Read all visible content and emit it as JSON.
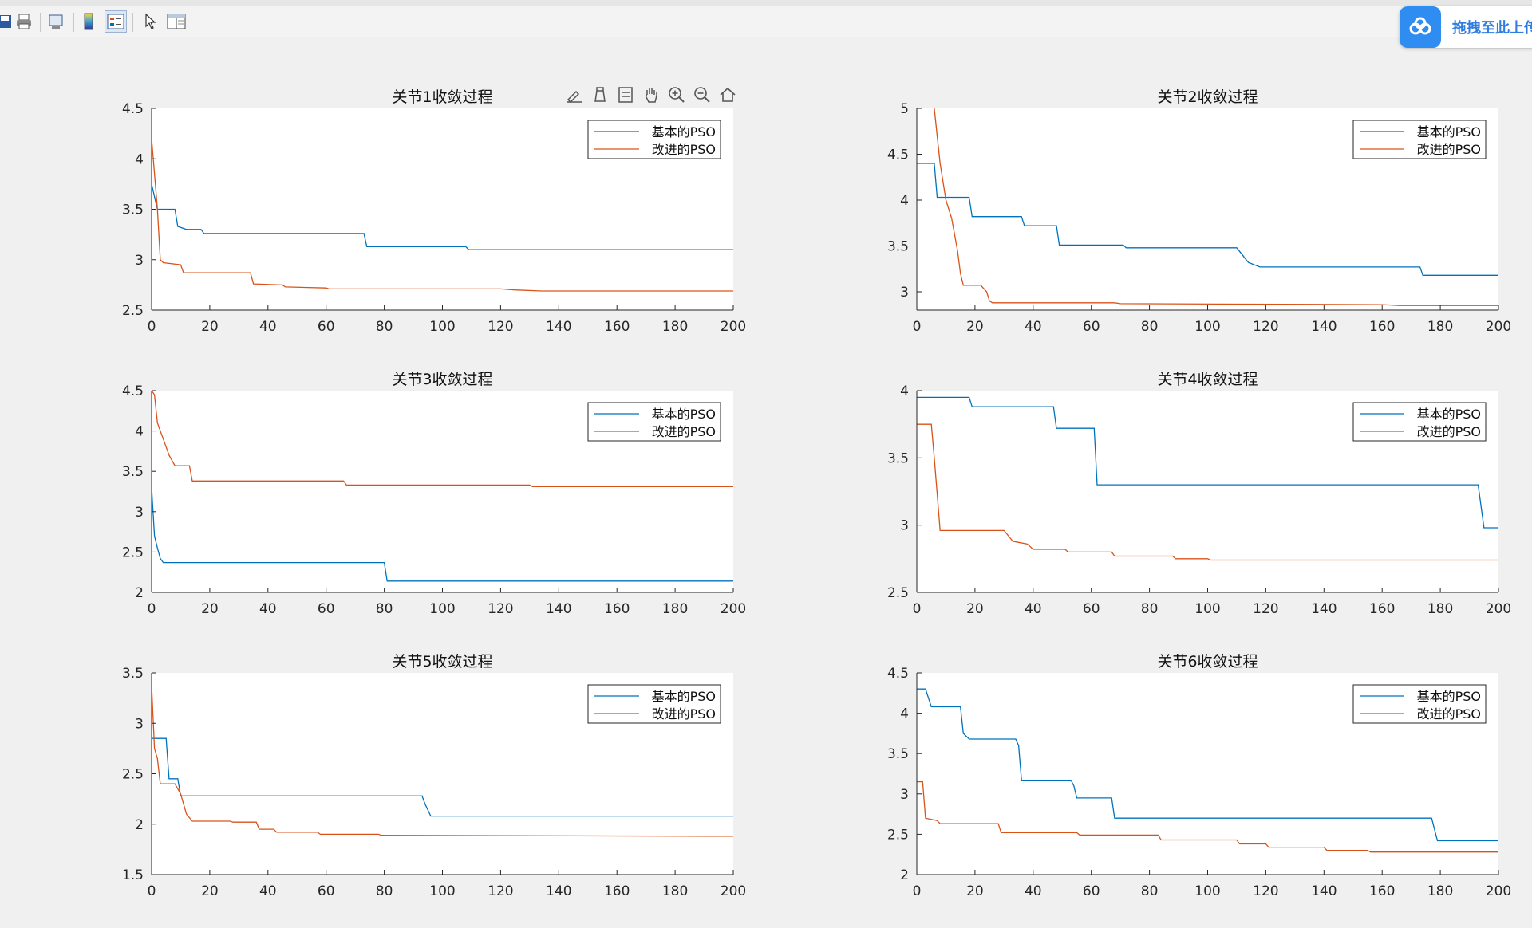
{
  "window": {
    "upload_label": "拖拽至此上传"
  },
  "toolbar": {
    "icons": [
      "save-icon",
      "print-icon",
      "print-preview-icon",
      "colorbar-icon",
      "legend-icon",
      "pointer-icon",
      "property-editor-icon"
    ]
  },
  "plot_toolbar": {
    "icons": [
      "brush-icon",
      "data-tips-icon",
      "datatips-cursor-icon",
      "pan-icon",
      "zoom-in-icon",
      "zoom-out-icon",
      "home-icon"
    ]
  },
  "colors": {
    "basic": "#0072bd",
    "improved": "#d95319",
    "axis": "#262626",
    "background": "#f0f0f0"
  },
  "chart_data": [
    {
      "type": "line",
      "title": "关节1收敛过程",
      "xlim": [
        0,
        200
      ],
      "ylim": [
        2.5,
        4.5
      ],
      "xticks": [
        "0",
        "20",
        "40",
        "60",
        "80",
        "100",
        "120",
        "140",
        "160",
        "180",
        "200"
      ],
      "yticks": [
        "2.5",
        "3",
        "3.5",
        "4",
        "4.5"
      ],
      "legend": [
        "基本的PSO",
        "改进的PSO"
      ],
      "series": [
        {
          "name": "基本的PSO",
          "points": [
            [
              0,
              3.75
            ],
            [
              2,
              3.5
            ],
            [
              8,
              3.5
            ],
            [
              9,
              3.33
            ],
            [
              12,
              3.3
            ],
            [
              17,
              3.3
            ],
            [
              18,
              3.26
            ],
            [
              73,
              3.26
            ],
            [
              74,
              3.13
            ],
            [
              108,
              3.13
            ],
            [
              109,
              3.1
            ],
            [
              200,
              3.1
            ]
          ]
        },
        {
          "name": "改进的PSO",
          "points": [
            [
              0,
              4.2
            ],
            [
              2,
              3.5
            ],
            [
              3,
              3.0
            ],
            [
              4,
              2.97
            ],
            [
              10,
              2.95
            ],
            [
              11,
              2.87
            ],
            [
              34,
              2.87
            ],
            [
              35,
              2.76
            ],
            [
              45,
              2.75
            ],
            [
              46,
              2.73
            ],
            [
              60,
              2.72
            ],
            [
              61,
              2.71
            ],
            [
              120,
              2.71
            ],
            [
              125,
              2.7
            ],
            [
              134,
              2.69
            ],
            [
              200,
              2.69
            ]
          ]
        }
      ]
    },
    {
      "type": "line",
      "title": "关节2收敛过程",
      "xlim": [
        0,
        200
      ],
      "ylim": [
        2.8,
        5
      ],
      "xticks": [
        "0",
        "20",
        "40",
        "60",
        "80",
        "100",
        "120",
        "140",
        "160",
        "180",
        "200"
      ],
      "yticks": [
        "3",
        "3.5",
        "4",
        "4.5",
        "5"
      ],
      "legend": [
        "基本的PSO",
        "改进的PSO"
      ],
      "series": [
        {
          "name": "基本的PSO",
          "points": [
            [
              0,
              4.4
            ],
            [
              6,
              4.4
            ],
            [
              7,
              4.03
            ],
            [
              18,
              4.03
            ],
            [
              19,
              3.82
            ],
            [
              36,
              3.82
            ],
            [
              37,
              3.72
            ],
            [
              48,
              3.72
            ],
            [
              49,
              3.51
            ],
            [
              71,
              3.51
            ],
            [
              72,
              3.48
            ],
            [
              110,
              3.48
            ],
            [
              114,
              3.32
            ],
            [
              118,
              3.27
            ],
            [
              173,
              3.27
            ],
            [
              174,
              3.18
            ],
            [
              200,
              3.18
            ]
          ]
        },
        {
          "name": "改进的PSO",
          "points": [
            [
              6,
              5.0
            ],
            [
              8,
              4.4
            ],
            [
              10,
              4.0
            ],
            [
              12,
              3.8
            ],
            [
              14,
              3.45
            ],
            [
              15,
              3.2
            ],
            [
              16,
              3.07
            ],
            [
              22,
              3.07
            ],
            [
              24,
              3.0
            ],
            [
              25,
              2.9
            ],
            [
              26,
              2.88
            ],
            [
              68,
              2.88
            ],
            [
              70,
              2.87
            ],
            [
              160,
              2.86
            ],
            [
              166,
              2.85
            ],
            [
              200,
              2.85
            ]
          ]
        }
      ]
    },
    {
      "type": "line",
      "title": "关节3收敛过程",
      "xlim": [
        0,
        200
      ],
      "ylim": [
        2,
        4.5
      ],
      "xticks": [
        "0",
        "20",
        "40",
        "60",
        "80",
        "100",
        "120",
        "140",
        "160",
        "180",
        "200"
      ],
      "yticks": [
        "2",
        "2.5",
        "3",
        "3.5",
        "4",
        "4.5"
      ],
      "legend": [
        "基本的PSO",
        "改进的PSO"
      ],
      "series": [
        {
          "name": "基本的PSO",
          "points": [
            [
              0,
              3.3
            ],
            [
              1,
              2.7
            ],
            [
              2,
              2.55
            ],
            [
              3,
              2.42
            ],
            [
              4,
              2.37
            ],
            [
              80,
              2.37
            ],
            [
              81,
              2.14
            ],
            [
              200,
              2.14
            ]
          ]
        },
        {
          "name": "改进的PSO",
          "points": [
            [
              0,
              4.5
            ],
            [
              1,
              4.45
            ],
            [
              2,
              4.1
            ],
            [
              4,
              3.9
            ],
            [
              6,
              3.7
            ],
            [
              8,
              3.57
            ],
            [
              13,
              3.57
            ],
            [
              14,
              3.38
            ],
            [
              66,
              3.38
            ],
            [
              67,
              3.33
            ],
            [
              130,
              3.33
            ],
            [
              131,
              3.31
            ],
            [
              200,
              3.31
            ]
          ]
        }
      ]
    },
    {
      "type": "line",
      "title": "关节4收敛过程",
      "xlim": [
        0,
        200
      ],
      "ylim": [
        2.5,
        4
      ],
      "xticks": [
        "0",
        "20",
        "40",
        "60",
        "80",
        "100",
        "120",
        "140",
        "160",
        "180",
        "200"
      ],
      "yticks": [
        "2.5",
        "3",
        "3.5",
        "4"
      ],
      "legend": [
        "基本的PSO",
        "改进的PSO"
      ],
      "series": [
        {
          "name": "基本的PSO",
          "points": [
            [
              0,
              3.95
            ],
            [
              18,
              3.95
            ],
            [
              19,
              3.88
            ],
            [
              47,
              3.88
            ],
            [
              48,
              3.72
            ],
            [
              61,
              3.72
            ],
            [
              62,
              3.3
            ],
            [
              193,
              3.3
            ],
            [
              195,
              2.98
            ],
            [
              200,
              2.98
            ]
          ]
        },
        {
          "name": "改进的PSO",
          "points": [
            [
              0,
              3.75
            ],
            [
              5,
              3.75
            ],
            [
              6,
              3.5
            ],
            [
              8,
              2.96
            ],
            [
              30,
              2.96
            ],
            [
              33,
              2.88
            ],
            [
              38,
              2.86
            ],
            [
              40,
              2.82
            ],
            [
              51,
              2.82
            ],
            [
              52,
              2.8
            ],
            [
              67,
              2.8
            ],
            [
              68,
              2.77
            ],
            [
              88,
              2.77
            ],
            [
              89,
              2.75
            ],
            [
              100,
              2.75
            ],
            [
              101,
              2.74
            ],
            [
              200,
              2.74
            ]
          ]
        }
      ]
    },
    {
      "type": "line",
      "title": "关节5收敛过程",
      "xlim": [
        0,
        200
      ],
      "ylim": [
        1.5,
        3.5
      ],
      "xticks": [
        "0",
        "20",
        "40",
        "60",
        "80",
        "100",
        "120",
        "140",
        "160",
        "180",
        "200"
      ],
      "yticks": [
        "1.5",
        "2",
        "2.5",
        "3",
        "3.5"
      ],
      "legend": [
        "基本的PSO",
        "改进的PSO"
      ],
      "series": [
        {
          "name": "基本的PSO",
          "points": [
            [
              0,
              2.85
            ],
            [
              5,
              2.85
            ],
            [
              6,
              2.45
            ],
            [
              9,
              2.45
            ],
            [
              10,
              2.28
            ],
            [
              93,
              2.28
            ],
            [
              94,
              2.2
            ],
            [
              96,
              2.08
            ],
            [
              200,
              2.08
            ]
          ]
        },
        {
          "name": "改进的PSO",
          "points": [
            [
              0,
              3.38
            ],
            [
              1,
              2.75
            ],
            [
              2,
              2.65
            ],
            [
              3,
              2.4
            ],
            [
              8,
              2.4
            ],
            [
              10,
              2.3
            ],
            [
              12,
              2.1
            ],
            [
              14,
              2.03
            ],
            [
              27,
              2.03
            ],
            [
              28,
              2.02
            ],
            [
              36,
              2.02
            ],
            [
              37,
              1.95
            ],
            [
              42,
              1.95
            ],
            [
              43,
              1.92
            ],
            [
              57,
              1.92
            ],
            [
              58,
              1.9
            ],
            [
              78,
              1.9
            ],
            [
              79,
              1.89
            ],
            [
              200,
              1.88
            ]
          ]
        }
      ]
    },
    {
      "type": "line",
      "title": "关节6收敛过程",
      "xlim": [
        0,
        200
      ],
      "ylim": [
        2,
        4.5
      ],
      "xticks": [
        "0",
        "20",
        "40",
        "60",
        "80",
        "100",
        "120",
        "140",
        "160",
        "180",
        "200"
      ],
      "yticks": [
        "2",
        "2.5",
        "3",
        "3.5",
        "4",
        "4.5"
      ],
      "legend": [
        "基本的PSO",
        "改进的PSO"
      ],
      "series": [
        {
          "name": "基本的PSO",
          "points": [
            [
              0,
              4.3
            ],
            [
              3,
              4.3
            ],
            [
              5,
              4.08
            ],
            [
              15,
              4.08
            ],
            [
              16,
              3.75
            ],
            [
              18,
              3.68
            ],
            [
              34,
              3.68
            ],
            [
              35,
              3.6
            ],
            [
              36,
              3.17
            ],
            [
              53,
              3.17
            ],
            [
              54,
              3.1
            ],
            [
              55,
              2.95
            ],
            [
              67,
              2.95
            ],
            [
              68,
              2.7
            ],
            [
              177,
              2.7
            ],
            [
              179,
              2.42
            ],
            [
              200,
              2.42
            ]
          ]
        },
        {
          "name": "改进的PSO",
          "points": [
            [
              0,
              3.15
            ],
            [
              2,
              3.15
            ],
            [
              3,
              2.7
            ],
            [
              7,
              2.67
            ],
            [
              8,
              2.63
            ],
            [
              28,
              2.63
            ],
            [
              29,
              2.52
            ],
            [
              55,
              2.52
            ],
            [
              56,
              2.49
            ],
            [
              83,
              2.49
            ],
            [
              84,
              2.43
            ],
            [
              110,
              2.43
            ],
            [
              111,
              2.38
            ],
            [
              120,
              2.38
            ],
            [
              121,
              2.34
            ],
            [
              140,
              2.34
            ],
            [
              141,
              2.3
            ],
            [
              155,
              2.3
            ],
            [
              156,
              2.28
            ],
            [
              200,
              2.28
            ]
          ]
        }
      ]
    }
  ]
}
